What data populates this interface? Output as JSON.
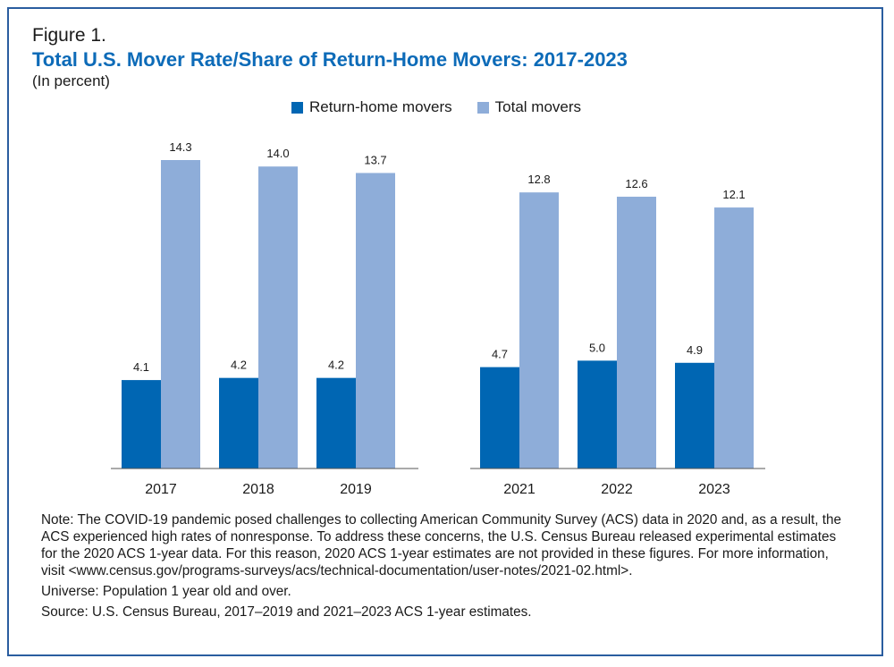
{
  "figure": {
    "label": "Figure 1.",
    "title": "Total U.S. Mover Rate/Share of Return-Home Movers: 2017-2023",
    "subtitle": "(In percent)"
  },
  "legend": {
    "items": [
      {
        "label": "Return-home movers",
        "color": "#0066b3"
      },
      {
        "label": "Total movers",
        "color": "#8eadd9"
      }
    ]
  },
  "chart_data": {
    "type": "bar",
    "title": "Total U.S. Mover Rate/Share of Return-Home Movers: 2017-2023",
    "subtitle": "(In percent)",
    "categories": [
      "2017",
      "2018",
      "2019",
      "2021",
      "2022",
      "2023"
    ],
    "series": [
      {
        "name": "Return-home movers",
        "values": [
          4.1,
          4.2,
          4.2,
          4.7,
          5.0,
          4.9
        ],
        "color": "#0066b3"
      },
      {
        "name": "Total movers",
        "values": [
          14.3,
          14.0,
          13.7,
          12.8,
          12.6,
          12.1
        ],
        "color": "#8eadd9"
      }
    ],
    "data_labels": true,
    "grid": false,
    "legend_position": "top-center",
    "ylim": [
      0,
      14.3
    ]
  },
  "notes": {
    "note": "Note: The COVID-19 pandemic posed challenges to collecting American Community Survey (ACS) data in 2020 and, as a result, the ACS experienced high rates of nonresponse. To address these concerns, the U.S. Census Bureau released experimental estimates for the 2020 ACS 1-year data. For this reason, 2020 ACS 1-year estimates are not provided in these figures. For more information, visit <www.census.gov/programs-surveys/acs/technical-documentation/user-notes/2021-02.html>.",
    "universe": "Universe: Population 1 year old and over.",
    "source": "Source: U.S. Census Bureau, 2017–2019 and 2021–2023 ACS 1-year estimates."
  }
}
